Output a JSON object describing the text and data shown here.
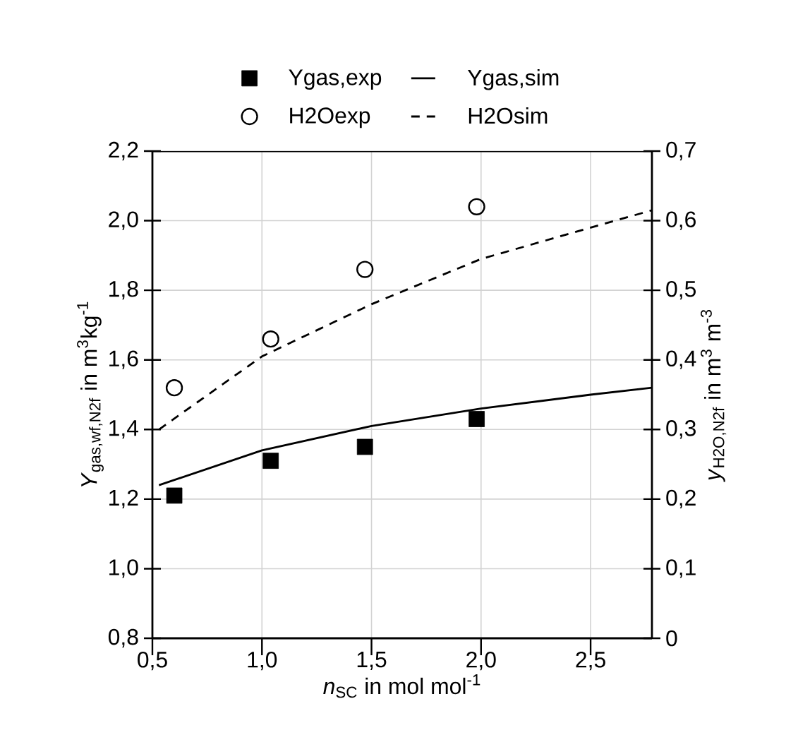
{
  "chart_data": {
    "type": "scatter",
    "xlabel": "*n*$_{SC}$ in mol mol$^{-1}$",
    "ylabel": "*Y*$_{gas,wf,N2f}$ in m$^{3}$kg$^{-1}$",
    "y2label": "*y*$_{H2O,N2f}$ in m$^{3}$ m$^{-3}$",
    "xlim": [
      0.5,
      2.78
    ],
    "xticks": [
      {
        "value": 0.5,
        "label": "0,5"
      },
      {
        "value": 1.0,
        "label": "1,0"
      },
      {
        "value": 1.5,
        "label": "1,5"
      },
      {
        "value": 2.0,
        "label": "2,0"
      },
      {
        "value": 2.5,
        "label": "2,5"
      }
    ],
    "ylim": [
      0.8,
      2.2
    ],
    "yticks": [
      {
        "value": 0.8,
        "label": "0,8"
      },
      {
        "value": 1.0,
        "label": "1,0"
      },
      {
        "value": 1.2,
        "label": "1,2"
      },
      {
        "value": 1.4,
        "label": "1,4"
      },
      {
        "value": 1.6,
        "label": "1,6"
      },
      {
        "value": 1.8,
        "label": "1,8"
      },
      {
        "value": 2.0,
        "label": "2,0"
      },
      {
        "value": 2.2,
        "label": "2,2"
      }
    ],
    "y2lim": [
      0,
      0.7
    ],
    "y2ticks": [
      0,
      {
        "value": 0.1,
        "label": "0,1"
      },
      {
        "value": 0.2,
        "label": "0,2"
      },
      {
        "value": 0.3,
        "label": "0,3"
      },
      {
        "value": 0.4,
        "label": "0,4"
      },
      {
        "value": 0.5,
        "label": "0,5"
      },
      {
        "value": 0.6,
        "label": "0,6"
      },
      {
        "value": 0.7,
        "label": "0,7"
      }
    ],
    "grid": true,
    "legend": "top",
    "series": [
      {
        "name": "Ygas,exp",
        "marker": "square",
        "color": "#000000",
        "x": [
          0.6,
          1.04,
          1.47,
          1.98
        ],
        "values": [
          1.21,
          1.31,
          1.35,
          1.43
        ]
      },
      {
        "name": "Ygas,sim",
        "type": "line",
        "line_style": "solid",
        "color": "#000000",
        "x": [
          0.53,
          1.0,
          1.5,
          2.0,
          2.5,
          2.78
        ],
        "values": [
          1.24,
          1.34,
          1.41,
          1.46,
          1.5,
          1.52
        ]
      },
      {
        "name": "H2Oexp",
        "marker": "circle",
        "axis": "y2",
        "color": "#000000",
        "x": [
          0.6,
          1.04,
          1.47,
          1.98
        ],
        "values": [
          0.36,
          0.43,
          0.53,
          0.62
        ]
      },
      {
        "name": "H2Osim",
        "type": "line",
        "line_style": "dashed",
        "axis": "y2",
        "color": "#000000",
        "x": [
          0.53,
          1.0,
          1.5,
          2.0,
          2.5,
          2.78
        ],
        "values": [
          0.3,
          0.405,
          0.48,
          0.545,
          0.59,
          0.615
        ]
      }
    ]
  }
}
